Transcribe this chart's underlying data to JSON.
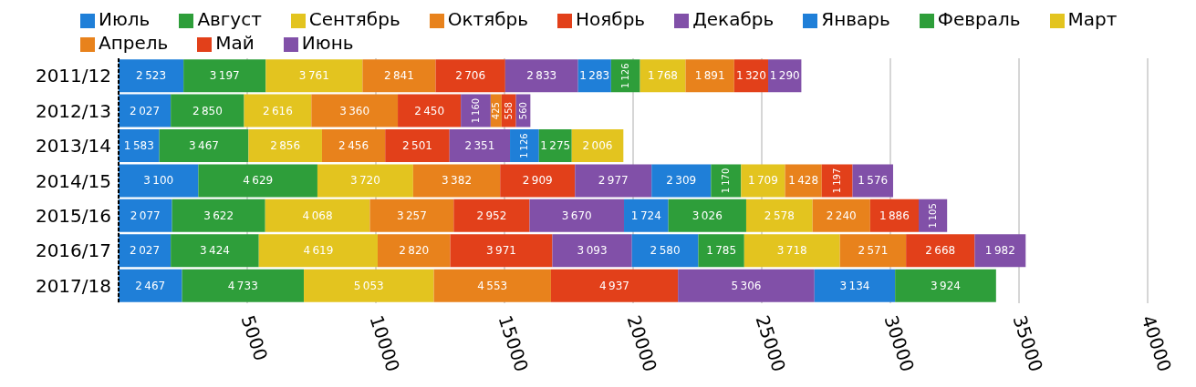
{
  "chart_data": {
    "type": "bar",
    "orientation": "horizontal",
    "stacked": true,
    "data_labels": true,
    "grid": "x",
    "legend": "top",
    "categories": [
      "2011/12",
      "2012/13",
      "2013/14",
      "2014/15",
      "2015/16",
      "2016/17",
      "2017/18"
    ],
    "xlim": [
      0,
      40000
    ],
    "xticks": [
      5000,
      10000,
      15000,
      20000,
      25000,
      30000,
      35000,
      40000
    ],
    "series": [
      {
        "name": "Июль",
        "color": "#1f7fd8",
        "values": [
          2523,
          2027,
          1583,
          3100,
          2077,
          2027,
          2467
        ]
      },
      {
        "name": "Август",
        "color": "#2e9e3a",
        "values": [
          3197,
          2850,
          3467,
          4629,
          3622,
          3424,
          4733
        ]
      },
      {
        "name": "Сентябрь",
        "color": "#e3c41f",
        "values": [
          3761,
          2616,
          2856,
          3720,
          4068,
          4619,
          5053
        ]
      },
      {
        "name": "Октябрь",
        "color": "#e8821c",
        "values": [
          2841,
          3360,
          2456,
          3382,
          3257,
          2820,
          4553
        ]
      },
      {
        "name": "Ноябрь",
        "color": "#e2401a",
        "values": [
          2706,
          2450,
          2501,
          2909,
          2952,
          3971,
          4937
        ]
      },
      {
        "name": "Декабрь",
        "color": "#8150a8",
        "values": [
          2833,
          1160,
          2351,
          2977,
          3670,
          3093,
          5306
        ]
      },
      {
        "name": "Январь",
        "color": "#1f7fd8",
        "values": [
          1283,
          null,
          1126,
          2309,
          1724,
          2580,
          3134
        ]
      },
      {
        "name": "Февраль",
        "color": "#2e9e3a",
        "values": [
          1126,
          null,
          1275,
          1170,
          3026,
          1785,
          3924
        ]
      },
      {
        "name": "Март",
        "color": "#e3c41f",
        "values": [
          1768,
          null,
          2006,
          1709,
          2578,
          3718,
          null
        ]
      },
      {
        "name": "Апрель",
        "color": "#e8821c",
        "values": [
          1891,
          425,
          null,
          1428,
          2240,
          2571,
          null
        ]
      },
      {
        "name": "Май",
        "color": "#e2401a",
        "values": [
          1320,
          558,
          null,
          1197,
          1886,
          2668,
          null
        ]
      },
      {
        "name": "Июнь",
        "color": "#8150a8",
        "values": [
          1290,
          560,
          null,
          1576,
          1105,
          1982,
          null
        ]
      }
    ]
  }
}
